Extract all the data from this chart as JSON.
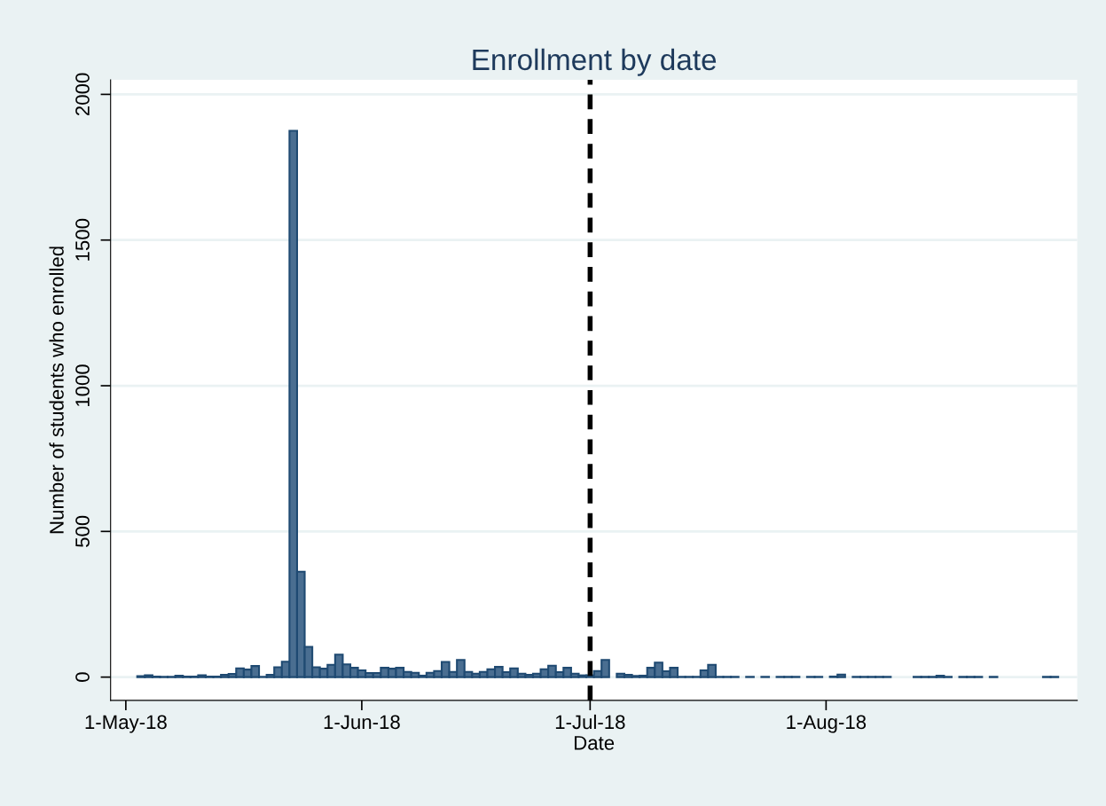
{
  "chart_data": {
    "type": "bar",
    "title": "Enrollment by date",
    "xlabel": "Date",
    "ylabel": "Number of students who enrolled",
    "x": [
      "2018-05-03",
      "2018-05-04",
      "2018-05-05",
      "2018-05-06",
      "2018-05-07",
      "2018-05-08",
      "2018-05-09",
      "2018-05-10",
      "2018-05-11",
      "2018-05-12",
      "2018-05-13",
      "2018-05-14",
      "2018-05-15",
      "2018-05-16",
      "2018-05-17",
      "2018-05-18",
      "2018-05-19",
      "2018-05-20",
      "2018-05-21",
      "2018-05-22",
      "2018-05-23",
      "2018-05-24",
      "2018-05-25",
      "2018-05-26",
      "2018-05-27",
      "2018-05-28",
      "2018-05-29",
      "2018-05-30",
      "2018-05-31",
      "2018-06-01",
      "2018-06-02",
      "2018-06-03",
      "2018-06-04",
      "2018-06-05",
      "2018-06-06",
      "2018-06-07",
      "2018-06-08",
      "2018-06-09",
      "2018-06-10",
      "2018-06-11",
      "2018-06-12",
      "2018-06-13",
      "2018-06-14",
      "2018-06-15",
      "2018-06-16",
      "2018-06-17",
      "2018-06-18",
      "2018-06-19",
      "2018-06-20",
      "2018-06-21",
      "2018-06-22",
      "2018-06-23",
      "2018-06-24",
      "2018-06-25",
      "2018-06-26",
      "2018-06-27",
      "2018-06-28",
      "2018-06-29",
      "2018-06-30",
      "2018-07-01",
      "2018-07-02",
      "2018-07-03",
      "2018-07-04",
      "2018-07-05",
      "2018-07-06",
      "2018-07-07",
      "2018-07-08",
      "2018-07-09",
      "2018-07-10",
      "2018-07-11",
      "2018-07-12",
      "2018-07-13",
      "2018-07-14",
      "2018-07-15",
      "2018-07-16",
      "2018-07-17",
      "2018-07-18",
      "2018-07-19",
      "2018-07-20",
      "2018-07-21",
      "2018-07-22",
      "2018-07-23",
      "2018-07-24",
      "2018-07-25",
      "2018-07-26",
      "2018-07-27",
      "2018-07-28",
      "2018-07-29",
      "2018-07-30",
      "2018-07-31",
      "2018-08-01",
      "2018-08-02",
      "2018-08-03",
      "2018-08-04",
      "2018-08-05",
      "2018-08-06",
      "2018-08-07",
      "2018-08-08",
      "2018-08-09",
      "2018-08-10",
      "2018-08-11",
      "2018-08-12",
      "2018-08-13",
      "2018-08-14",
      "2018-08-15",
      "2018-08-16",
      "2018-08-17",
      "2018-08-18",
      "2018-08-19",
      "2018-08-20",
      "2018-08-21",
      "2018-08-22",
      "2018-08-23",
      "2018-08-24",
      "2018-08-25",
      "2018-08-26",
      "2018-08-27",
      "2018-08-28",
      "2018-08-29",
      "2018-08-30",
      "2018-08-31"
    ],
    "series": [
      {
        "color": "#4a6e91",
        "values": [
          3,
          6,
          2,
          1,
          1,
          5,
          2,
          2,
          6,
          2,
          2,
          8,
          11,
          30,
          26,
          38,
          1,
          8,
          34,
          53,
          1875,
          362,
          104,
          34,
          29,
          42,
          77,
          44,
          32,
          23,
          14,
          14,
          32,
          29,
          32,
          18,
          15,
          5,
          15,
          21,
          52,
          18,
          59,
          18,
          12,
          18,
          27,
          35,
          17,
          30,
          12,
          8,
          12,
          27,
          39,
          17,
          32,
          12,
          6,
          6,
          21,
          59,
          null,
          12,
          8,
          4,
          5,
          32,
          50,
          20,
          32,
          1,
          1,
          1,
          23,
          42,
          1,
          1,
          1,
          null,
          1,
          null,
          1,
          null,
          1,
          1,
          1,
          null,
          1,
          1,
          null,
          2,
          9,
          null,
          1,
          1,
          1,
          1,
          1,
          null,
          null,
          null,
          1,
          1,
          1,
          5,
          1,
          null,
          1,
          1,
          1,
          null,
          1,
          null,
          null,
          null,
          null,
          null,
          null,
          1,
          1
        ]
      }
    ],
    "xlim": [
      "2018-04-29",
      "2018-09-03"
    ],
    "xticks": [
      {
        "value": "2018-05-01",
        "label": "1-May-18"
      },
      {
        "value": "2018-06-01",
        "label": "1-Jun-18"
      },
      {
        "value": "2018-07-01",
        "label": "1-Jul-18"
      },
      {
        "value": "2018-08-01",
        "label": "1-Aug-18"
      }
    ],
    "ylim": [
      -80,
      2050
    ],
    "yticks": [
      0,
      500,
      1000,
      1500,
      2000
    ],
    "ref_lines": [
      {
        "axis": "x",
        "value": "2018-07-01",
        "label": null,
        "color": "#000000",
        "line_style": "dashed"
      }
    ],
    "grid": "y"
  }
}
